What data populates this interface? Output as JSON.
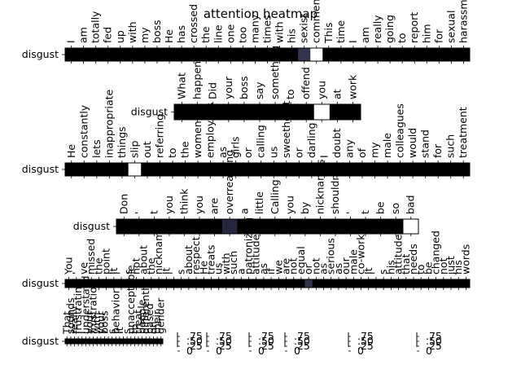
{
  "chart_data": {
    "type": "heatmap",
    "title": "attention heatmap",
    "colormap": [
      "#000000",
      "#ffffff"
    ],
    "row_label": "disgust",
    "colorbar_ticks": [
      "0",
      ".25",
      ".50",
      ".75"
    ],
    "rows": [
      {
        "tokens": [
          "I",
          "am",
          "totally",
          "fed",
          "up",
          "with",
          "my",
          "boss",
          "He",
          "has",
          "crossed",
          "the",
          "line",
          "one",
          "too",
          "many",
          "times",
          "with",
          "his",
          "sexist",
          "comments",
          "This",
          "time",
          "I",
          "am",
          "really",
          "going",
          "to",
          "report",
          "him",
          "for",
          "sexual",
          "harassment"
        ],
        "values": [
          0,
          0,
          0,
          0,
          0,
          0,
          0,
          0,
          0,
          0,
          0,
          0,
          0,
          0,
          0,
          0,
          0,
          0,
          0,
          0.2,
          1.0,
          0,
          0,
          0,
          0,
          0,
          0,
          0,
          0,
          0,
          0,
          0,
          0
        ]
      },
      {
        "tokens": [
          "What",
          "happened",
          "Did",
          "your",
          "boss",
          "say",
          "something",
          "to",
          "offend",
          "you",
          "at",
          "work"
        ],
        "values": [
          0,
          0,
          0,
          0,
          0,
          0,
          0,
          0,
          0,
          1.0,
          0,
          0
        ]
      },
      {
        "tokens": [
          "He",
          "constantly",
          "lets",
          "inappropriate",
          "things",
          "slip",
          "out",
          "referring",
          "to",
          "the",
          "women",
          "employees",
          "as",
          "girls",
          "or",
          "calling",
          "us",
          "sweetheart",
          "or",
          "darling",
          "I",
          "doubt",
          "any",
          "of",
          "my",
          "male",
          "colleagues",
          "would",
          "stand",
          "for",
          "such",
          "treatment"
        ],
        "values": [
          0,
          0,
          0,
          0,
          0,
          1.0,
          0,
          0,
          0,
          0,
          0,
          0,
          0,
          0,
          0,
          0,
          0,
          0,
          0,
          0,
          0,
          0,
          0,
          0,
          0,
          0,
          0,
          0,
          0,
          0,
          0,
          0
        ]
      },
      {
        "tokens": [
          "Don",
          "'",
          "t",
          "you",
          "think",
          "you",
          "are",
          "overreacting",
          "a",
          "little",
          "Calling",
          "you",
          "by",
          "nicknames",
          "shouldn",
          "'",
          "t",
          "be",
          "so",
          "bad"
        ],
        "values": [
          0,
          0,
          0,
          0,
          0,
          0,
          0,
          0.15,
          0,
          0,
          0,
          0,
          0,
          0,
          0,
          0,
          0,
          0,
          0,
          1.0
        ]
      },
      {
        "tokens": [
          "You",
          "'",
          "ve",
          "missed",
          "the",
          "point",
          "It",
          "'",
          "s",
          "not",
          "about",
          "the",
          "nicknames",
          "It",
          "'",
          "s",
          "about",
          "respect",
          "He",
          "treats",
          "us",
          "with",
          "such",
          "a",
          "patronizing",
          "attitude",
          "as",
          "if",
          "we",
          "are",
          "not",
          "equal",
          "or",
          "not",
          "as",
          "serious",
          "as",
          "our",
          "male",
          "co-workers",
          "It",
          "'",
          "s",
          "his",
          "attitude",
          "that",
          "needs",
          "to",
          "be",
          "changed",
          "not",
          "just",
          "his",
          "words"
        ],
        "values": [
          0,
          0,
          0,
          0,
          0,
          0,
          0,
          0,
          0,
          0,
          0,
          0,
          0,
          0,
          0,
          0,
          0,
          0,
          0,
          0,
          0,
          0,
          0,
          0,
          0,
          0,
          0,
          0,
          0,
          0,
          0,
          0,
          0.2,
          0,
          0,
          0,
          0,
          0,
          0,
          0,
          0,
          0,
          0,
          0,
          0,
          0,
          0,
          0,
          0,
          0,
          0,
          0,
          0,
          0
        ]
      },
      {
        "tokens": [
          "That",
          "sounds",
          "really",
          "frustrating",
          "I",
          "understand",
          "your",
          "frustration",
          "with",
          "your",
          "boss",
          "'",
          "s",
          "behavior",
          "It",
          "'",
          "s",
          "unacceptable",
          "to",
          "treat",
          "people",
          "differently",
          "based",
          "on",
          "their",
          "gender"
        ],
        "values": [
          0,
          0,
          0,
          0,
          0,
          0,
          0,
          0,
          0,
          0,
          0,
          0,
          0,
          0,
          0,
          0,
          0,
          0,
          0,
          0,
          0,
          0,
          0,
          0,
          0,
          0
        ]
      }
    ]
  }
}
